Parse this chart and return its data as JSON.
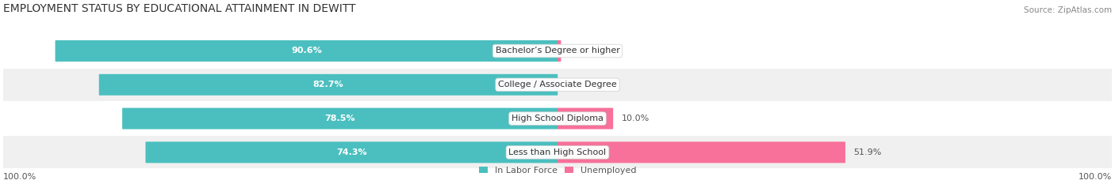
{
  "title": "EMPLOYMENT STATUS BY EDUCATIONAL ATTAINMENT IN DEWITT",
  "source": "Source: ZipAtlas.com",
  "categories": [
    "Less than High School",
    "High School Diploma",
    "College / Associate Degree",
    "Bachelor’s Degree or higher"
  ],
  "labor_force": [
    74.3,
    78.5,
    82.7,
    90.6
  ],
  "unemployed": [
    51.9,
    10.0,
    0.0,
    0.6
  ],
  "labor_force_color": "#4bbfbf",
  "unemployed_color": "#f7719a",
  "row_bg_colors": [
    "#f0f0f0",
    "#ffffff",
    "#f0f0f0",
    "#ffffff"
  ],
  "axis_label_left": "100.0%",
  "axis_label_right": "100.0%",
  "legend_labor": "In Labor Force",
  "legend_unemployed": "Unemployed",
  "title_fontsize": 10,
  "source_fontsize": 7.5,
  "bar_label_fontsize": 8,
  "category_fontsize": 8,
  "axis_tick_fontsize": 8,
  "max_val": 100.0
}
